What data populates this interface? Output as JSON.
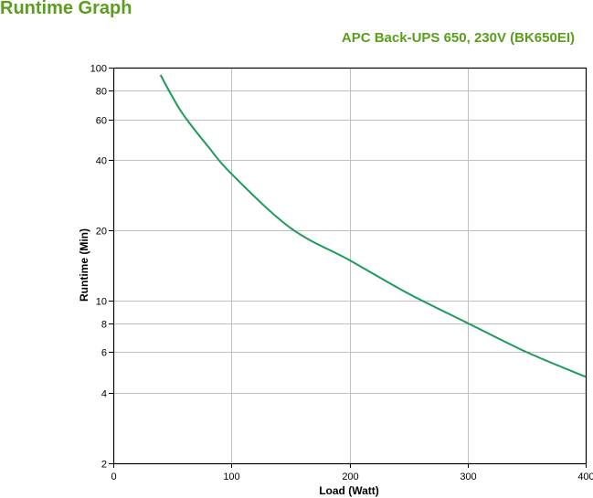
{
  "header": {
    "title": "Runtime Graph",
    "subtitle": "APC Back-UPS 650, 230V (BK650EI)"
  },
  "colors": {
    "title": "#5a9e1c",
    "line": "#1d9a5a",
    "grid": "#c0c0c0",
    "axis": "#000000"
  },
  "chart_data": {
    "type": "line",
    "title": "Runtime Graph",
    "subtitle": "APC Back-UPS 650, 230V (BK650EI)",
    "xlabel": "Load (Watt)",
    "ylabel": "Runtime (Min)",
    "xlim": [
      0,
      400
    ],
    "ylim": [
      2,
      100
    ],
    "yscale": "log",
    "grid": true,
    "legend": "none",
    "x_ticks": [
      0,
      100,
      200,
      300,
      400
    ],
    "y_ticks": [
      2,
      4,
      6,
      8,
      10,
      20,
      40,
      60,
      80,
      100
    ],
    "series": [
      {
        "name": "Runtime",
        "x": [
          40,
          50,
          60,
          80,
          100,
          150,
          200,
          250,
          300,
          350,
          400
        ],
        "values": [
          93,
          75,
          62,
          46,
          35,
          20.5,
          14.9,
          10.7,
          8.0,
          6.0,
          4.7
        ]
      }
    ]
  }
}
